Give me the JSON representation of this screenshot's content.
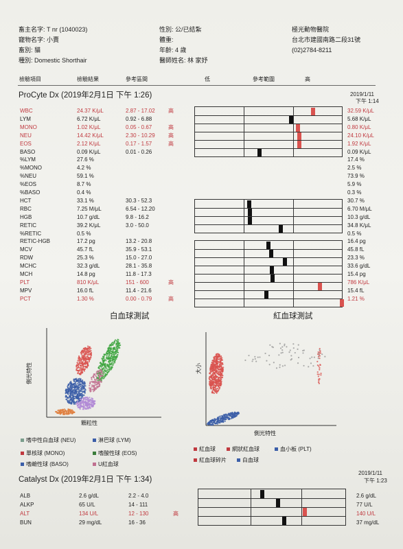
{
  "header": {
    "owner": "畜主名字: T nr (1040023)",
    "pet": "寵物名字: 小賣",
    "species": "畜別: 貓",
    "breed": "種別: Domestic Shorthair",
    "sex": "性別: 公/已結紮",
    "weight": "體重:",
    "age": "年齡: 4 歲",
    "vet": "醫師姓名: 林 家妤",
    "clinic_name": "極光動物醫院",
    "clinic_address": "台北市建國南路二段31號",
    "clinic_phone": "(02)2784-8211"
  },
  "columns": {
    "item": "檢驗項目",
    "result": "檢驗結果",
    "reference": "參考區間",
    "low": "低",
    "ref_range": "參考範圍",
    "high": "高"
  },
  "cbc": {
    "title": "ProCyte Dx (2019年2月1日 下午 1:26)",
    "prev_date": "2019/1/11",
    "prev_time": "下午 1:14",
    "rows": [
      {
        "name": "WBC",
        "value": "24.37 K/μL",
        "ref": "2.87 - 17.02",
        "flag": "高",
        "prev": "32.59 K/μL",
        "high": true
      },
      {
        "name": "LYM",
        "value": "6.72 K/μL",
        "ref": "0.92 - 6.88",
        "flag": "",
        "prev": "5.68 K/μL",
        "high": false
      },
      {
        "name": "MONO",
        "value": "1.02 K/μL",
        "ref": "0.05 - 0.67",
        "flag": "高",
        "prev": "0.80 K/μL",
        "high": true
      },
      {
        "name": "NEU",
        "value": "14.42 K/μL",
        "ref": "2.30 - 10.29",
        "flag": "高",
        "prev": "24.10 K/μL",
        "high": true
      },
      {
        "name": "EOS",
        "value": "2.12 K/μL",
        "ref": "0.17 - 1.57",
        "flag": "高",
        "prev": "1.92 K/μL",
        "high": true
      },
      {
        "name": "BASO",
        "value": "0.09 K/μL",
        "ref": "0.01 - 0.26",
        "flag": "",
        "prev": "0.09 K/μL",
        "high": false
      },
      {
        "name": "%LYM",
        "value": "27.6 %",
        "ref": "",
        "flag": "",
        "prev": "17.4 %",
        "high": false
      },
      {
        "name": "%MONO",
        "value": "4.2 %",
        "ref": "",
        "flag": "",
        "prev": "2.5 %",
        "high": false
      },
      {
        "name": "%NEU",
        "value": "59.1 %",
        "ref": "",
        "flag": "",
        "prev": "73.9 %",
        "high": false
      },
      {
        "name": "%EOS",
        "value": "8.7 %",
        "ref": "",
        "flag": "",
        "prev": "5.9 %",
        "high": false
      },
      {
        "name": "%BASO",
        "value": "0.4 %",
        "ref": "",
        "flag": "",
        "prev": "0.3 %",
        "high": false
      },
      {
        "name": "HCT",
        "value": "33.1 %",
        "ref": "30.3 - 52.3",
        "flag": "",
        "prev": "30.7 %",
        "high": false
      },
      {
        "name": "RBC",
        "value": "7.25 M/μL",
        "ref": "6.54 - 12.20",
        "flag": "",
        "prev": "6.70 M/μL",
        "high": false
      },
      {
        "name": "HGB",
        "value": "10.7 g/dL",
        "ref": "9.8 - 16.2",
        "flag": "",
        "prev": "10.3 g/dL",
        "high": false
      },
      {
        "name": "RETIC",
        "value": "39.2 K/μL",
        "ref": "3.0 - 50.0",
        "flag": "",
        "prev": "34.8 K/μL",
        "high": false
      },
      {
        "name": "%RETIC",
        "value": "0.5 %",
        "ref": "",
        "flag": "",
        "prev": "0.5 %",
        "high": false
      },
      {
        "name": "RETIC-HGB",
        "value": "17.2 pg",
        "ref": "13.2 - 20.8",
        "flag": "",
        "prev": "16.4 pg",
        "high": false
      },
      {
        "name": "MCV",
        "value": "45.7 fL",
        "ref": "35.9 - 53.1",
        "flag": "",
        "prev": "45.8 fL",
        "high": false
      },
      {
        "name": "RDW",
        "value": "25.3 %",
        "ref": "15.0 - 27.0",
        "flag": "",
        "prev": "23.3 %",
        "high": false
      },
      {
        "name": "MCHC",
        "value": "32.3 g/dL",
        "ref": "28.1 - 35.8",
        "flag": "",
        "prev": "33.6 g/dL",
        "high": false
      },
      {
        "name": "MCH",
        "value": "14.8 pg",
        "ref": "11.8 - 17.3",
        "flag": "",
        "prev": "15.4 pg",
        "high": false
      },
      {
        "name": "PLT",
        "value": "810 K/μL",
        "ref": "151 - 600",
        "flag": "高",
        "prev": "786 K/μL",
        "high": true
      },
      {
        "name": "MPV",
        "value": "16.0 fL",
        "ref": "11.4 - 21.6",
        "flag": "",
        "prev": "15.4 fL",
        "high": false
      },
      {
        "name": "PCT",
        "value": "1.30 %",
        "ref": "0.00 - 0.79",
        "flag": "高",
        "prev": "1.21 %",
        "high": true
      }
    ]
  },
  "charts": {
    "wbc_title": "白血球測試",
    "rbc_title": "紅血球測試",
    "wbc_y": "側光特性",
    "wbc_x": "顆粒性",
    "rbc_y": "大小",
    "rbc_x": "側光特性",
    "wbc_legend": [
      {
        "label": "嗜中性白血球 (NEU)",
        "color": "#7b9e8c"
      },
      {
        "label": "淋巴球 (LYM)",
        "color": "#3b5ea8"
      },
      {
        "label": "單核球 (MONO)",
        "color": "#c0393f"
      },
      {
        "label": "嗜酸性球 (EOS)",
        "color": "#3b7d3b"
      },
      {
        "label": "嗜鹼性球 (BASO)",
        "color": "#3b5ea8"
      },
      {
        "label": "U紅血球",
        "color": "#c07090"
      }
    ],
    "rbc_legend": [
      {
        "label": "紅血球",
        "color": "#c0393f"
      },
      {
        "label": "網狀紅血球",
        "color": "#c0393f"
      },
      {
        "label": "血小板 (PLT)",
        "color": "#3b5ea8"
      },
      {
        "label": "紅血球碎片",
        "color": "#c0393f"
      },
      {
        "label": "白血球",
        "color": "#3b5ea8"
      }
    ]
  },
  "chem": {
    "title": "Catalyst Dx (2019年2月1日 下午 1:34)",
    "prev_date": "2019/1/11",
    "prev_time": "下午 1:23",
    "rows": [
      {
        "name": "ALB",
        "value": "2.6 g/dL",
        "ref": "2.2 - 4.0",
        "flag": "",
        "prev": "2.6 g/dL",
        "high": false
      },
      {
        "name": "ALKP",
        "value": "65 U/L",
        "ref": "14 - 111",
        "flag": "",
        "prev": "77 U/L",
        "high": false
      },
      {
        "name": "ALT",
        "value": "134 U/L",
        "ref": "12 - 130",
        "flag": "高",
        "prev": "140 U/L",
        "high": true
      },
      {
        "name": "BUN",
        "value": "29 mg/dL",
        "ref": "16 - 36",
        "flag": "",
        "prev": "37 mg/dL",
        "high": false
      }
    ]
  }
}
